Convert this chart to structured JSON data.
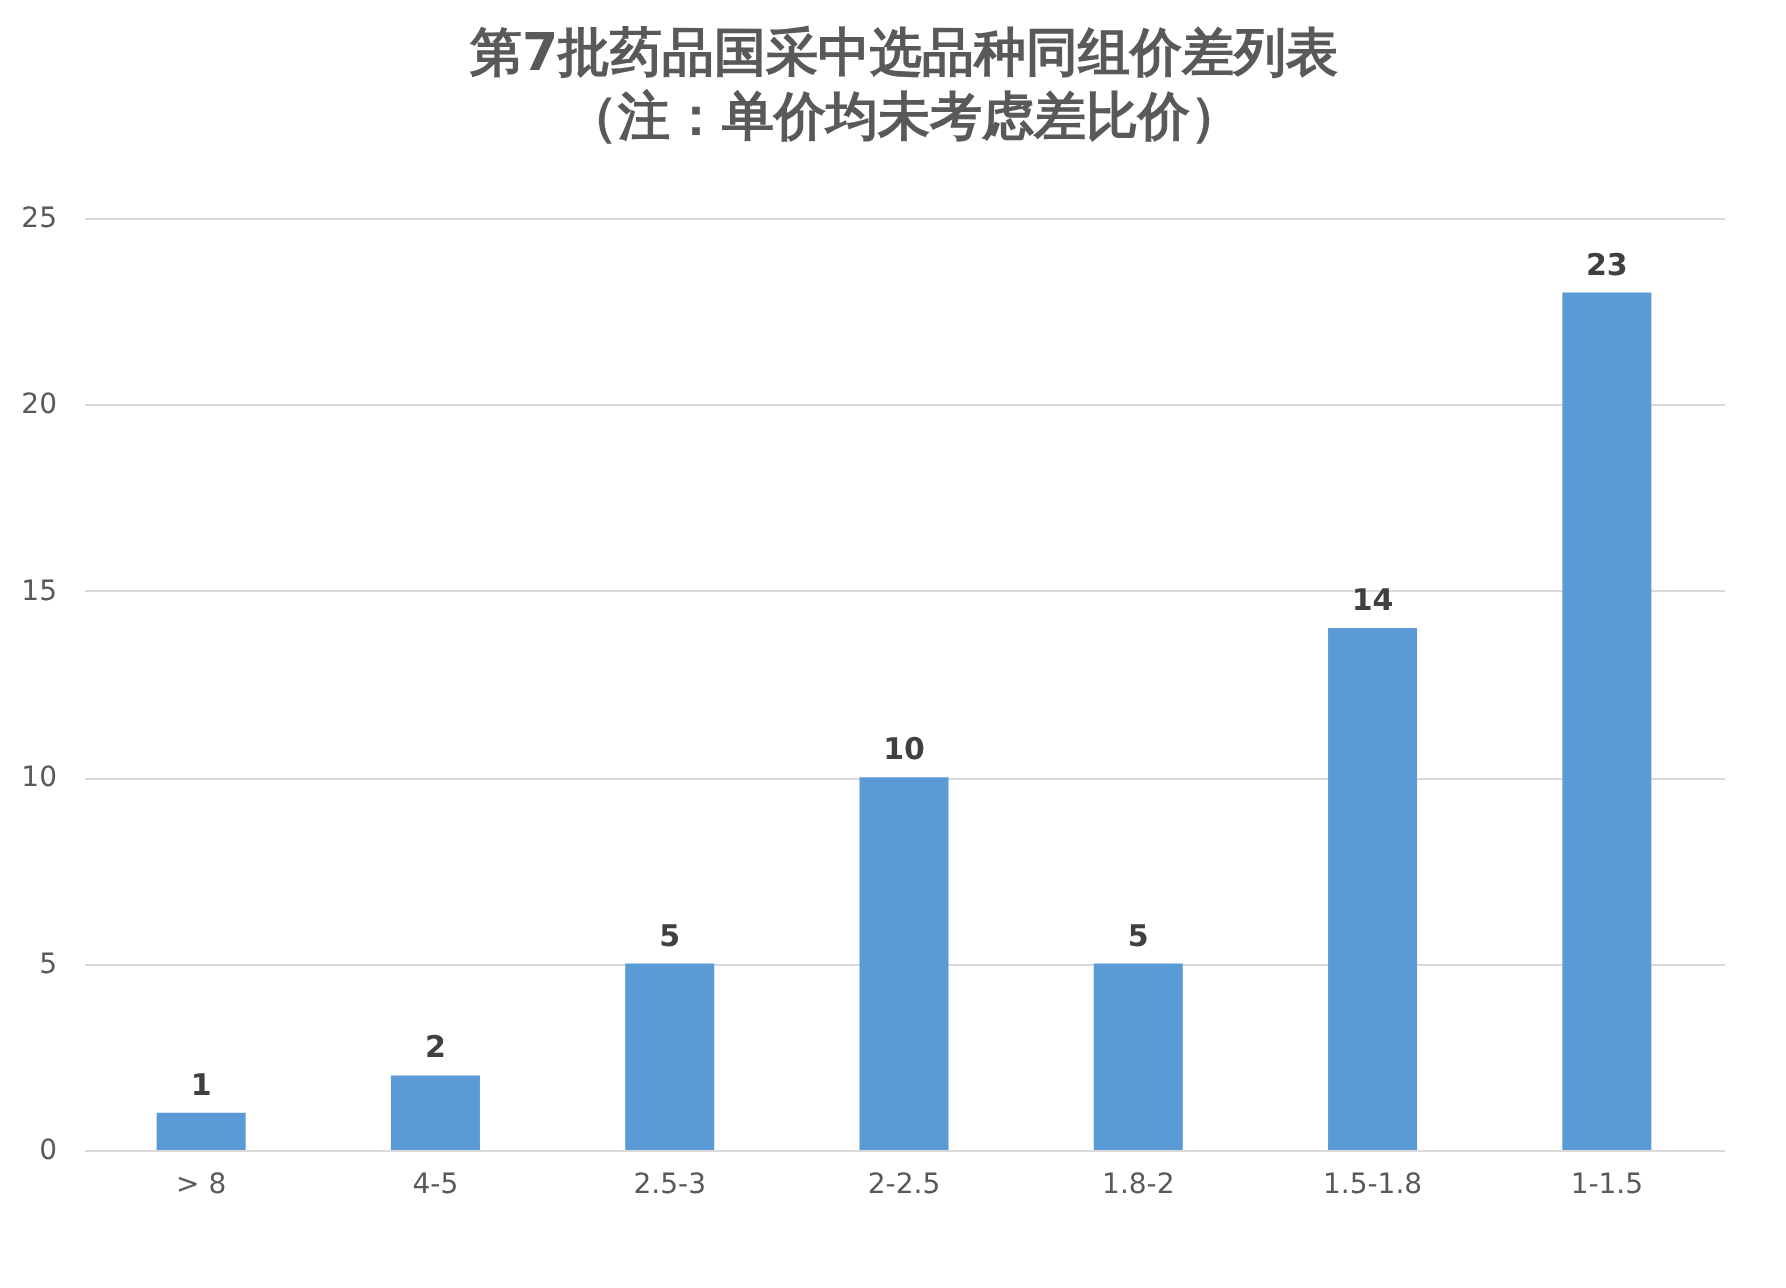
{
  "chart_data": {
    "type": "bar",
    "title": "第7批药品国采中选品种同组价差列表",
    "subtitle": "（注：单价均未考虑差比价）",
    "categories": [
      "> 8",
      "4-5",
      "2.5-3",
      "2-2.5",
      "1.8-2",
      "1.5-1.8",
      "1-1.5"
    ],
    "values": [
      1,
      2,
      5,
      10,
      5,
      14,
      23
    ],
    "color": "#5b9bd5",
    "ylim": [
      0,
      25
    ],
    "yticks": [
      0,
      5,
      10,
      15,
      20,
      25
    ],
    "grid": "y",
    "data_labels": true
  }
}
